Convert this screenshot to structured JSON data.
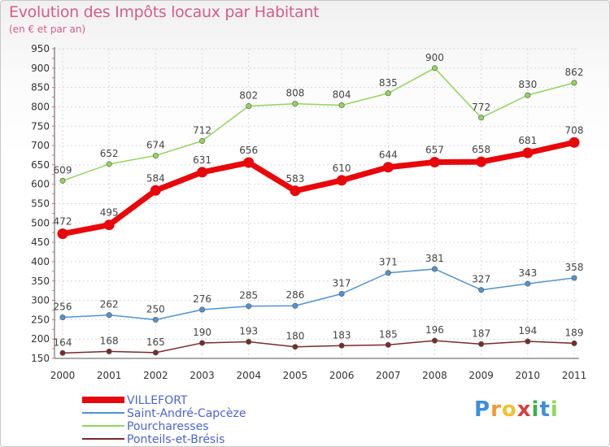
{
  "chart_data": {
    "type": "line",
    "title": "Evolution des Impôts locaux par Habitant",
    "subtitle": "(en € et par an)",
    "xlabel": "",
    "ylabel": "",
    "ylim": [
      150,
      950
    ],
    "yticks": [
      150,
      200,
      250,
      300,
      350,
      400,
      450,
      500,
      550,
      600,
      650,
      700,
      750,
      800,
      850,
      900,
      950
    ],
    "categories": [
      "2000",
      "2001",
      "2002",
      "2003",
      "2004",
      "2005",
      "2006",
      "2007",
      "2008",
      "2009",
      "2010",
      "2011"
    ],
    "legend_position": "bottom-left",
    "series": [
      {
        "name": "VILLEFORT",
        "color": "#e8080b",
        "values": [
          472,
          495,
          584,
          631,
          656,
          583,
          610,
          644,
          657,
          658,
          681,
          708
        ]
      },
      {
        "name": "Saint-André-Capcèze",
        "color": "#4f93d0",
        "values": [
          256,
          262,
          250,
          276,
          285,
          286,
          317,
          371,
          381,
          327,
          343,
          358
        ]
      },
      {
        "name": "Pourcharesses",
        "color": "#8fd65a",
        "values": [
          609,
          652,
          674,
          712,
          802,
          808,
          804,
          835,
          900,
          772,
          830,
          862
        ]
      },
      {
        "name": "Ponteils-et-Brésis",
        "color": "#7a2a2a",
        "values": [
          164,
          168,
          165,
          190,
          193,
          180,
          183,
          185,
          196,
          187,
          194,
          189
        ]
      }
    ]
  },
  "logo": {
    "letters": [
      "P",
      "r",
      "o",
      "x",
      "i",
      "t",
      "i"
    ],
    "colors": [
      "#3f8fd8",
      "#f29a2e",
      "#f2c12e",
      "#d83f3f",
      "#3fb04a",
      "#3f8fd8",
      "#8fd65a"
    ]
  }
}
